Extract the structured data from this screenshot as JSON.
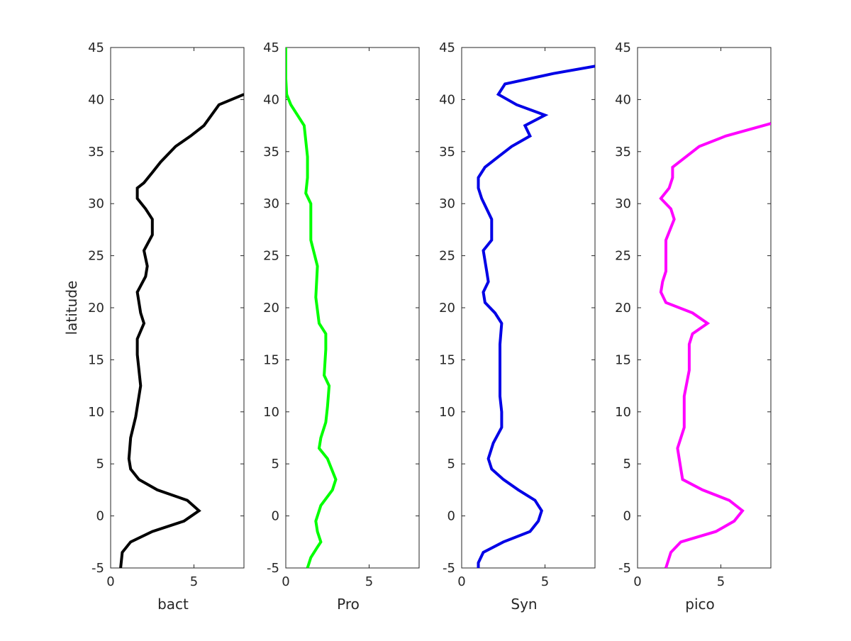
{
  "chart_data": {
    "type": "line",
    "ylabel": "latitude",
    "ylim": [
      -5,
      45
    ],
    "yticks": [
      "-5",
      "0",
      "5",
      "10",
      "15",
      "20",
      "25",
      "30",
      "35",
      "40",
      "45"
    ],
    "xlim": [
      0,
      8
    ],
    "xticks": [
      "0",
      "5"
    ],
    "grid": false,
    "panels": [
      {
        "xlabel": "bact",
        "color": "#000000",
        "points": [
          [
            0.6,
            -5
          ],
          [
            0.7,
            -3.5
          ],
          [
            1.2,
            -2.5
          ],
          [
            2.5,
            -1.5
          ],
          [
            4.4,
            -0.5
          ],
          [
            5.3,
            0.5
          ],
          [
            4.6,
            1.5
          ],
          [
            2.8,
            2.5
          ],
          [
            1.7,
            3.5
          ],
          [
            1.2,
            4.5
          ],
          [
            1.1,
            5.5
          ],
          [
            1.2,
            7.5
          ],
          [
            1.5,
            9.5
          ],
          [
            1.8,
            12.5
          ],
          [
            1.6,
            15.5
          ],
          [
            1.6,
            17
          ],
          [
            2.0,
            18.5
          ],
          [
            1.8,
            19.5
          ],
          [
            1.6,
            21.5
          ],
          [
            2.1,
            23
          ],
          [
            2.2,
            24
          ],
          [
            2.0,
            25.5
          ],
          [
            2.5,
            27
          ],
          [
            2.5,
            28.5
          ],
          [
            2.1,
            29.5
          ],
          [
            1.6,
            30.5
          ],
          [
            1.6,
            31.5
          ],
          [
            2.0,
            32
          ],
          [
            2.5,
            33
          ],
          [
            3.0,
            34
          ],
          [
            3.9,
            35.5
          ],
          [
            4.8,
            36.5
          ],
          [
            5.6,
            37.5
          ],
          [
            6.5,
            39.5
          ],
          [
            8.0,
            40.5
          ]
        ]
      },
      {
        "xlabel": "Pro",
        "color": "#00ff00",
        "points": [
          [
            1.3,
            -5
          ],
          [
            1.5,
            -4
          ],
          [
            1.9,
            -3
          ],
          [
            2.1,
            -2.5
          ],
          [
            1.9,
            -1.5
          ],
          [
            1.8,
            -0.5
          ],
          [
            2.1,
            1
          ],
          [
            2.8,
            2.5
          ],
          [
            3.0,
            3.5
          ],
          [
            2.5,
            5.5
          ],
          [
            2.0,
            6.5
          ],
          [
            2.1,
            7.5
          ],
          [
            2.4,
            9
          ],
          [
            2.5,
            10.5
          ],
          [
            2.6,
            12.5
          ],
          [
            2.3,
            13.5
          ],
          [
            2.4,
            16
          ],
          [
            2.4,
            17.5
          ],
          [
            2.0,
            18.5
          ],
          [
            1.8,
            21
          ],
          [
            1.9,
            24
          ],
          [
            1.5,
            26.5
          ],
          [
            1.5,
            30
          ],
          [
            1.2,
            31
          ],
          [
            1.3,
            32.5
          ],
          [
            1.3,
            34.5
          ],
          [
            1.1,
            37.5
          ],
          [
            0.3,
            39.5
          ],
          [
            0.05,
            40.5
          ],
          [
            0.0,
            42
          ],
          [
            0.0,
            45
          ]
        ]
      },
      {
        "xlabel": "Syn",
        "color": "#0000e6",
        "points": [
          [
            1.0,
            -5
          ],
          [
            1.0,
            -4.5
          ],
          [
            1.3,
            -3.5
          ],
          [
            2.5,
            -2.5
          ],
          [
            4.1,
            -1.5
          ],
          [
            4.6,
            -0.5
          ],
          [
            4.8,
            0.5
          ],
          [
            4.4,
            1.5
          ],
          [
            3.4,
            2.5
          ],
          [
            2.5,
            3.5
          ],
          [
            1.8,
            4.5
          ],
          [
            1.6,
            5.5
          ],
          [
            1.9,
            7
          ],
          [
            2.4,
            8.5
          ],
          [
            2.4,
            10
          ],
          [
            2.3,
            11.5
          ],
          [
            2.3,
            14
          ],
          [
            2.3,
            16.5
          ],
          [
            2.4,
            18.5
          ],
          [
            2.0,
            19.5
          ],
          [
            1.4,
            20.5
          ],
          [
            1.3,
            21.5
          ],
          [
            1.6,
            22.5
          ],
          [
            1.5,
            23.5
          ],
          [
            1.3,
            25.5
          ],
          [
            1.8,
            26.5
          ],
          [
            1.8,
            28.5
          ],
          [
            1.2,
            30.5
          ],
          [
            1.0,
            31.5
          ],
          [
            1.0,
            32.5
          ],
          [
            1.4,
            33.5
          ],
          [
            2.2,
            34.5
          ],
          [
            3.0,
            35.5
          ],
          [
            4.1,
            36.5
          ],
          [
            3.8,
            37.5
          ],
          [
            5.0,
            38.5
          ],
          [
            3.3,
            39.5
          ],
          [
            2.2,
            40.5
          ],
          [
            2.6,
            41.5
          ],
          [
            5.5,
            42.5
          ],
          [
            8.0,
            43.2
          ]
        ]
      },
      {
        "xlabel": "pico",
        "color": "#ff00ff",
        "points": [
          [
            1.7,
            -5
          ],
          [
            1.8,
            -4.5
          ],
          [
            2.0,
            -3.5
          ],
          [
            2.6,
            -2.5
          ],
          [
            4.7,
            -1.5
          ],
          [
            5.8,
            -0.5
          ],
          [
            6.3,
            0.5
          ],
          [
            5.5,
            1.5
          ],
          [
            3.9,
            2.5
          ],
          [
            2.7,
            3.5
          ],
          [
            2.6,
            4.5
          ],
          [
            2.4,
            6.5
          ],
          [
            2.8,
            8.5
          ],
          [
            2.8,
            10
          ],
          [
            2.8,
            11.5
          ],
          [
            3.1,
            14
          ],
          [
            3.1,
            16.5
          ],
          [
            3.3,
            17.5
          ],
          [
            4.2,
            18.5
          ],
          [
            3.3,
            19.5
          ],
          [
            1.7,
            20.5
          ],
          [
            1.4,
            21.5
          ],
          [
            1.5,
            22.5
          ],
          [
            1.7,
            23.5
          ],
          [
            1.7,
            26.5
          ],
          [
            2.2,
            28.5
          ],
          [
            2.0,
            29.5
          ],
          [
            1.4,
            30.5
          ],
          [
            1.9,
            31.5
          ],
          [
            2.1,
            32.5
          ],
          [
            2.1,
            33.5
          ],
          [
            3.7,
            35.5
          ],
          [
            5.3,
            36.5
          ],
          [
            8.0,
            37.7
          ]
        ]
      }
    ]
  }
}
